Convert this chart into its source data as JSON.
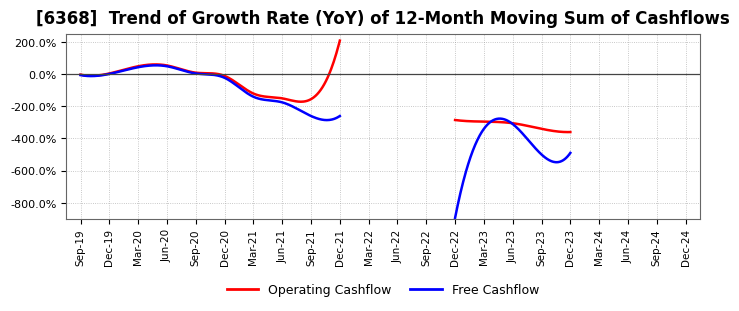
{
  "title": "[6368]  Trend of Growth Rate (YoY) of 12-Month Moving Sum of Cashflows",
  "title_fontsize": 12,
  "x_labels": [
    "Sep-19",
    "Dec-19",
    "Mar-20",
    "Jun-20",
    "Sep-20",
    "Dec-20",
    "Mar-21",
    "Jun-21",
    "Sep-21",
    "Dec-21",
    "Mar-22",
    "Jun-22",
    "Sep-22",
    "Dec-22",
    "Mar-23",
    "Jun-23",
    "Sep-23",
    "Dec-23",
    "Mar-24",
    "Jun-24",
    "Sep-24",
    "Dec-24"
  ],
  "ylim": [
    -900,
    250
  ],
  "yticks": [
    200,
    0,
    -200,
    -400,
    -600,
    -800
  ],
  "operating_x1": [
    0,
    1,
    2,
    3,
    4,
    5,
    6,
    7,
    8,
    9
  ],
  "operating_y1": [
    -2,
    5,
    50,
    55,
    10,
    -10,
    -120,
    -150,
    -155,
    210
  ],
  "operating_x2": [
    13,
    14,
    15,
    16,
    17
  ],
  "operating_y2": [
    -285,
    -295,
    -305,
    -340,
    -360
  ],
  "free_x1": [
    0,
    1,
    2,
    3,
    4,
    5,
    6,
    7,
    8,
    9
  ],
  "free_y1": [
    -5,
    2,
    44,
    50,
    5,
    -22,
    -140,
    -175,
    -260,
    -260
  ],
  "free_x2": [
    13,
    14,
    15,
    16,
    17
  ],
  "free_y2": [
    -895,
    -340,
    -310,
    -500,
    -490
  ],
  "op_color": "#ff0000",
  "fr_color": "#0000ff",
  "linewidth": 1.8,
  "background_color": "#ffffff",
  "grid_color": "#999999",
  "legend_labels": [
    "Operating Cashflow",
    "Free Cashflow"
  ],
  "legend_colors": [
    "#ff0000",
    "#0000ff"
  ]
}
